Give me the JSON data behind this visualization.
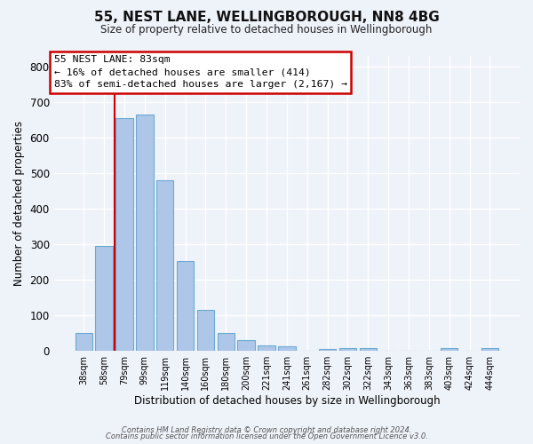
{
  "title_line1": "55, NEST LANE, WELLINGBOROUGH, NN8 4BG",
  "title_line2": "Size of property relative to detached houses in Wellingborough",
  "xlabel": "Distribution of detached houses by size in Wellingborough",
  "ylabel": "Number of detached properties",
  "bar_labels": [
    "38sqm",
    "58sqm",
    "79sqm",
    "99sqm",
    "119sqm",
    "140sqm",
    "160sqm",
    "180sqm",
    "200sqm",
    "221sqm",
    "241sqm",
    "261sqm",
    "282sqm",
    "302sqm",
    "322sqm",
    "343sqm",
    "363sqm",
    "383sqm",
    "403sqm",
    "424sqm",
    "444sqm"
  ],
  "bar_values": [
    48,
    295,
    655,
    665,
    478,
    252,
    115,
    50,
    29,
    15,
    13,
    0,
    5,
    8,
    8,
    0,
    0,
    0,
    8,
    0,
    8
  ],
  "bar_color": "#aec6e8",
  "bar_edge_color": "#6aaad4",
  "bg_color": "#eef2f9",
  "grid_color": "#ffffff",
  "vline_color": "#cc0000",
  "vline_x_index": 2,
  "annotation_title": "55 NEST LANE: 83sqm",
  "annotation_line1": "← 16% of detached houses are smaller (414)",
  "annotation_line2": "83% of semi-detached houses are larger (2,167) →",
  "annotation_box_color": "#ffffff",
  "annotation_box_edge_color": "#cc0000",
  "ylim": [
    0,
    830
  ],
  "yticks": [
    0,
    100,
    200,
    300,
    400,
    500,
    600,
    700,
    800
  ],
  "footer_line1": "Contains HM Land Registry data © Crown copyright and database right 2024.",
  "footer_line2": "Contains public sector information licensed under the Open Government Licence v3.0."
}
